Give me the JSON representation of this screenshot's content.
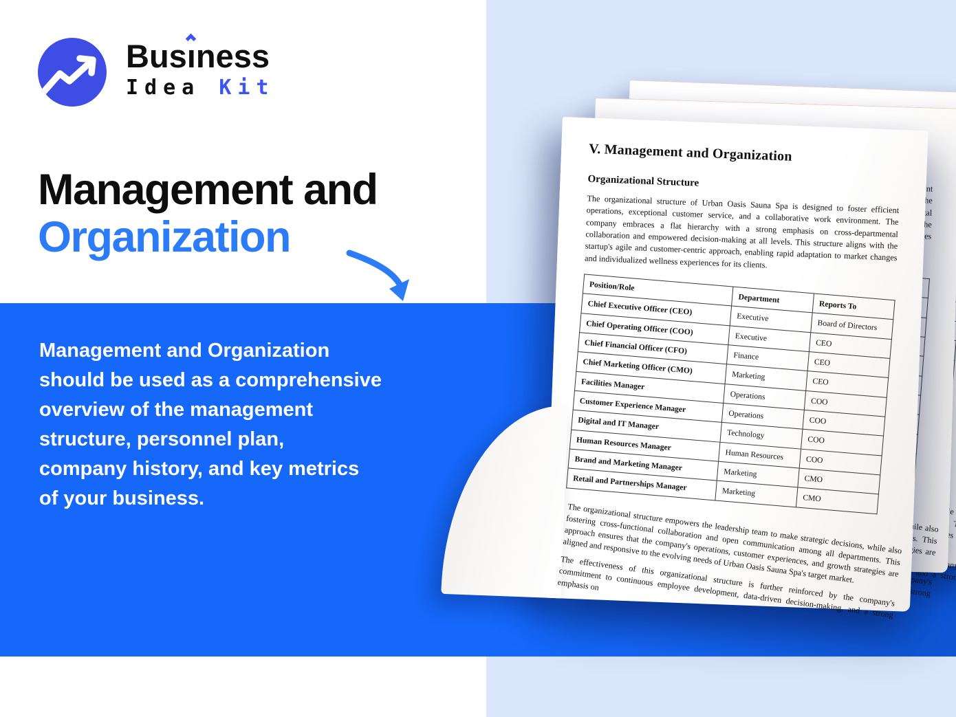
{
  "brand": {
    "name": "Business",
    "wordmark_prefix": "Bus",
    "wordmark_i": "ı",
    "wordmark_suffix": "ness",
    "subtitle_word1": "Idea",
    "subtitle_word2": "Kit"
  },
  "hero": {
    "title_line1": "Management and",
    "title_line2": "Organization",
    "description": "Management and Organization\nshould be used as a comprehensive\noverview of the management\nstructure, personnel plan,\ncompany history, and key metrics\nof your business."
  },
  "document": {
    "heading": "V. Management and Organization",
    "subheading": "Organizational Structure",
    "intro": "The organizational structure of Urban Oasis Sauna Spa is designed to foster efficient operations, exceptional customer service, and a collaborative work environment. The company embraces a flat hierarchy with a strong emphasis on cross-departmental collaboration and empowered decision-making at all levels. This structure aligns with the startup's agile and customer-centric approach, enabling rapid adaptation to market changes and individualized wellness experiences for its clients.",
    "table": {
      "headers": [
        "Position/Role",
        "Department",
        "Reports To"
      ],
      "rows": [
        [
          "Chief Executive Officer (CEO)",
          "Executive",
          "Board of Directors"
        ],
        [
          "Chief Operating Officer (COO)",
          "Executive",
          "CEO"
        ],
        [
          "Chief Financial Officer (CFO)",
          "Finance",
          "CEO"
        ],
        [
          "Chief Marketing Officer (CMO)",
          "Marketing",
          "CEO"
        ],
        [
          "Facilities Manager",
          "Operations",
          "COO"
        ],
        [
          "Customer Experience Manager",
          "Operations",
          "COO"
        ],
        [
          "Digital and IT Manager",
          "Technology",
          "COO"
        ],
        [
          "Human Resources Manager",
          "Human Resources",
          "COO"
        ],
        [
          "Brand and Marketing Manager",
          "Marketing",
          "CMO"
        ],
        [
          "Retail and Partnerships Manager",
          "Marketing",
          "CMO"
        ]
      ]
    },
    "closing_paragraphs": [
      "The organizational structure empowers the leadership team to make strategic decisions, while also fostering cross-functional collaboration and open communication among all departments. This approach ensures that the company's operations, customer experiences, and growth strategies are aligned and responsive to the evolving needs of Urban Oasis Sauna Spa's target market.",
      "The effectiveness of this organizational structure is further reinforced by the company's commitment to continuous employee development, data-driven decision-making, and a strong emphasis on"
    ]
  },
  "colors": {
    "banner_blue": "#1568fa",
    "title_blue": "#2d7cf7",
    "logo_blue": "#3e4ee4",
    "accent_blue": "#3c56f0",
    "panel_blue": "#d9e6fb"
  }
}
